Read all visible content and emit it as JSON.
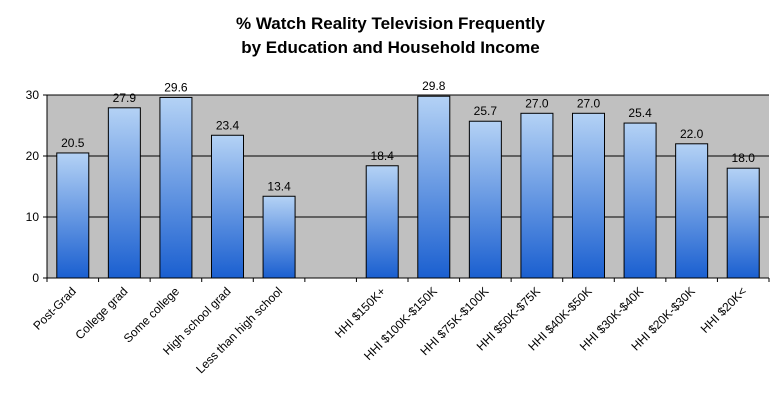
{
  "chart_data": {
    "type": "bar",
    "title": "% Watch Reality Television Frequently",
    "subtitle": "by Education and Household Income",
    "xlabel": "",
    "ylabel": "",
    "ylim": [
      0,
      30
    ],
    "yticks": [
      0,
      10,
      20,
      30
    ],
    "grid": true,
    "categories": [
      "Post-Grad",
      "College grad",
      "Some college",
      "High school grad",
      "Less than high school",
      "",
      "HHI $150K+",
      "HHI $100K-$150K",
      "HHI $75K-$100K",
      "HHI $50K-$75K",
      "HHI $40K-$50K",
      "HHI $30K-$40K",
      "HHI $20K-$30K",
      "HHI $20K<"
    ],
    "values": [
      20.5,
      27.9,
      29.6,
      23.4,
      13.4,
      null,
      18.4,
      29.8,
      25.7,
      27.0,
      27.0,
      25.4,
      22.0,
      18.0
    ],
    "data_labels": [
      "20.5",
      "27.9",
      "29.6",
      "23.4",
      "13.4",
      "",
      "18.4",
      "29.8",
      "25.7",
      "27.0",
      "27.0",
      "25.4",
      "22.0",
      "18.0"
    ],
    "colors": {
      "bar_top": "#b4d2f5",
      "bar_bottom": "#1a5fd0",
      "plot_bg": "#c0c0c0"
    }
  }
}
